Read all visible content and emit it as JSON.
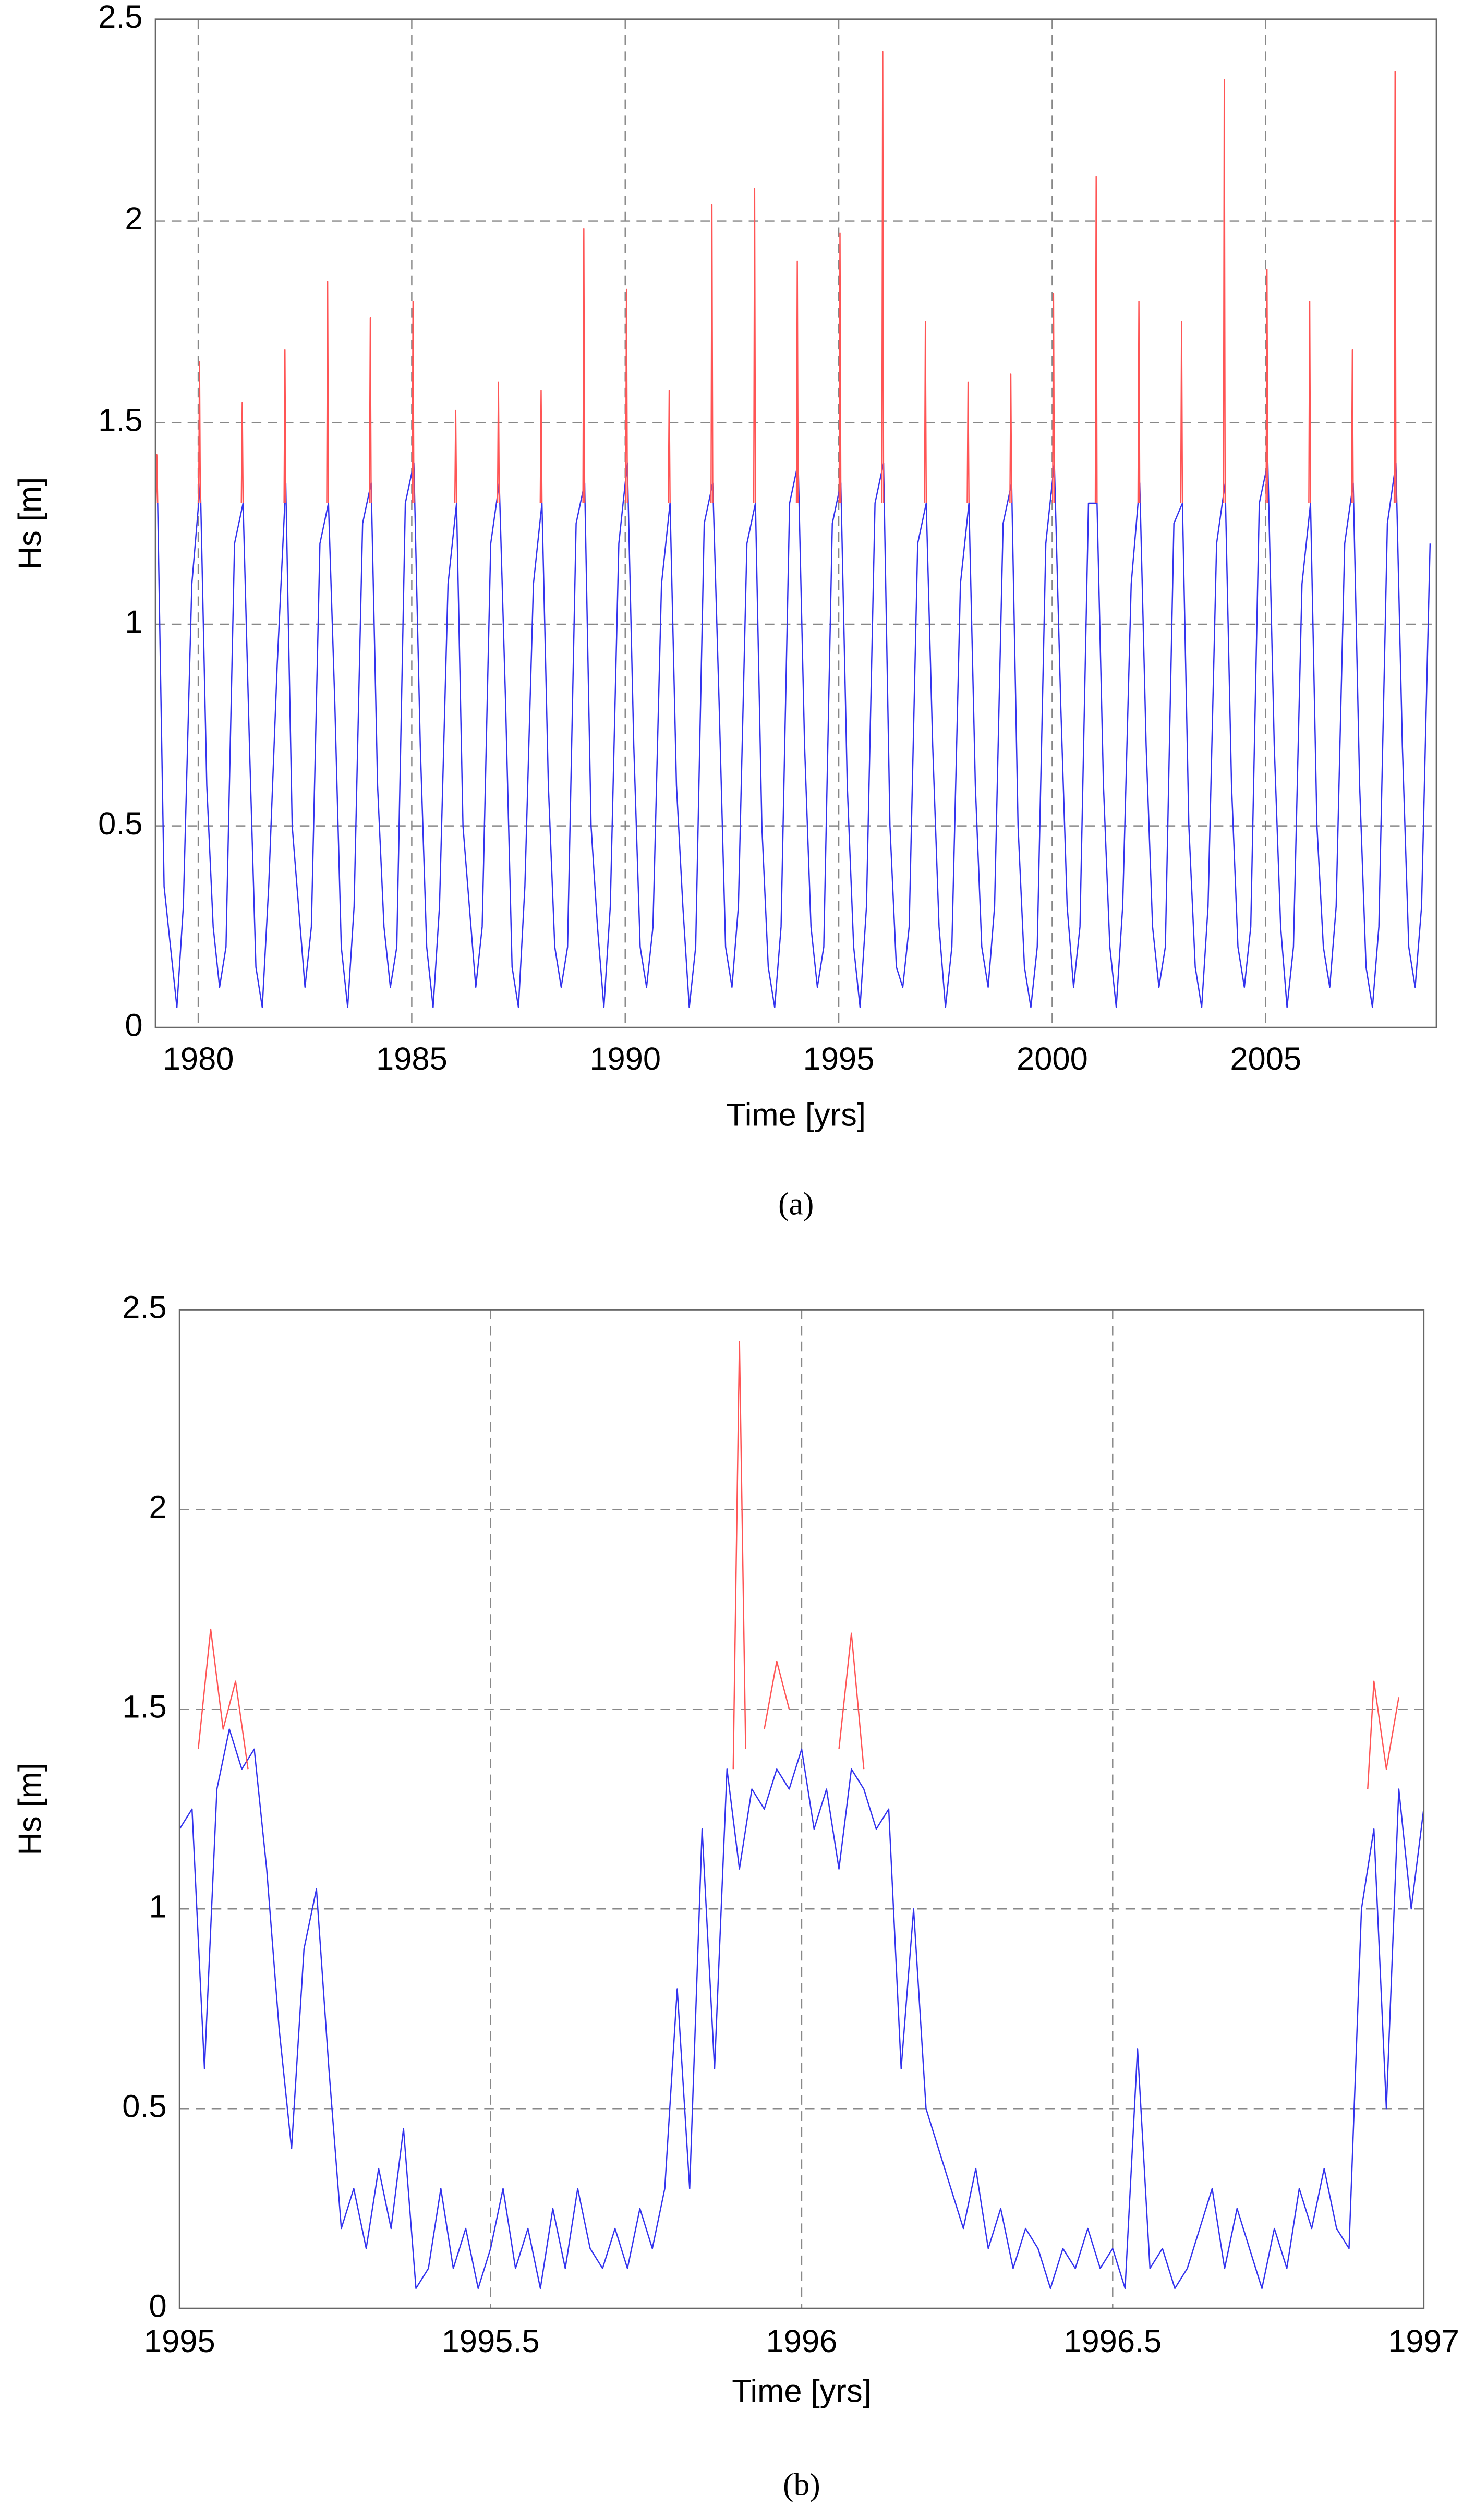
{
  "chart_data": [
    {
      "type": "line",
      "caption": "(a)",
      "xlabel": "Time [yrs]",
      "ylabel": "Hs [m]",
      "xlim": [
        1979,
        2009
      ],
      "xticks": [
        1980,
        1985,
        1990,
        1995,
        2000,
        2005
      ],
      "ylim": [
        0,
        2.5
      ],
      "yticks": [
        0,
        0.5,
        1,
        1.5,
        2,
        2.5
      ],
      "grid": true,
      "series": [
        {
          "color": "#3333ee",
          "x": [
            1979.05,
            1979.2,
            1979.35,
            1979.5,
            1979.65,
            1979.85,
            1980.05,
            1980.2,
            1980.35,
            1980.5,
            1980.65,
            1980.85,
            1981.05,
            1981.2,
            1981.35,
            1981.5,
            1981.65,
            1981.85,
            1982.05,
            1982.2,
            1982.35,
            1982.5,
            1982.65,
            1982.85,
            1983.05,
            1983.2,
            1983.35,
            1983.5,
            1983.65,
            1983.85,
            1984.05,
            1984.2,
            1984.35,
            1984.5,
            1984.65,
            1984.85,
            1985.05,
            1985.2,
            1985.35,
            1985.5,
            1985.65,
            1985.85,
            1986.05,
            1986.2,
            1986.35,
            1986.5,
            1986.65,
            1986.85,
            1987.05,
            1987.2,
            1987.35,
            1987.5,
            1987.65,
            1987.85,
            1988.05,
            1988.2,
            1988.35,
            1988.5,
            1988.65,
            1988.85,
            1989.05,
            1989.2,
            1989.35,
            1989.5,
            1989.65,
            1989.85,
            1990.05,
            1990.2,
            1990.35,
            1990.5,
            1990.65,
            1990.85,
            1991.05,
            1991.2,
            1991.35,
            1991.5,
            1991.65,
            1991.85,
            1992.05,
            1992.2,
            1992.35,
            1992.5,
            1992.65,
            1992.85,
            1993.05,
            1993.2,
            1993.35,
            1993.5,
            1993.65,
            1993.85,
            1994.05,
            1994.2,
            1994.35,
            1994.5,
            1994.65,
            1994.85,
            1995.05,
            1995.2,
            1995.35,
            1995.5,
            1995.65,
            1995.85,
            1996.05,
            1996.2,
            1996.35,
            1996.5,
            1996.65,
            1996.85,
            1997.05,
            1997.2,
            1997.35,
            1997.5,
            1997.65,
            1997.85,
            1998.05,
            1998.2,
            1998.35,
            1998.5,
            1998.65,
            1998.85,
            1999.05,
            1999.2,
            1999.35,
            1999.5,
            1999.65,
            1999.85,
            2000.05,
            2000.2,
            2000.35,
            2000.5,
            2000.65,
            2000.85,
            2001.05,
            2001.2,
            2001.35,
            2001.5,
            2001.65,
            2001.85,
            2002.05,
            2002.2,
            2002.35,
            2002.5,
            2002.65,
            2002.85,
            2003.05,
            2003.2,
            2003.35,
            2003.5,
            2003.65,
            2003.85,
            2004.05,
            2004.2,
            2004.35,
            2004.5,
            2004.65,
            2004.85,
            2005.05,
            2005.2,
            2005.35,
            2005.5,
            2005.65,
            2005.85,
            2006.05,
            2006.2,
            2006.35,
            2006.5,
            2006.65,
            2006.85,
            2007.05,
            2007.2,
            2007.35,
            2007.5,
            2007.65,
            2007.85,
            2008.05,
            2008.2,
            2008.35,
            2008.5,
            2008.65,
            2008.85
          ],
          "values": [
            1.3,
            0.35,
            0.2,
            0.05,
            0.3,
            1.1,
            1.35,
            0.6,
            0.25,
            0.1,
            0.2,
            1.2,
            1.3,
            0.7,
            0.15,
            0.05,
            0.35,
            0.9,
            1.35,
            0.5,
            0.3,
            0.1,
            0.25,
            1.2,
            1.3,
            0.8,
            0.2,
            0.05,
            0.3,
            1.25,
            1.35,
            0.6,
            0.25,
            0.1,
            0.2,
            1.3,
            1.4,
            0.7,
            0.2,
            0.05,
            0.3,
            1.1,
            1.3,
            0.5,
            0.3,
            0.1,
            0.25,
            1.2,
            1.35,
            0.8,
            0.15,
            0.05,
            0.35,
            1.1,
            1.3,
            0.6,
            0.2,
            0.1,
            0.2,
            1.25,
            1.35,
            0.5,
            0.25,
            0.05,
            0.3,
            1.2,
            1.4,
            0.7,
            0.2,
            0.1,
            0.25,
            1.1,
            1.3,
            0.6,
            0.3,
            0.05,
            0.2,
            1.25,
            1.35,
            0.8,
            0.2,
            0.1,
            0.3,
            1.2,
            1.3,
            0.5,
            0.15,
            0.05,
            0.25,
            1.3,
            1.4,
            0.7,
            0.25,
            0.1,
            0.2,
            1.25,
            1.35,
            0.6,
            0.2,
            0.05,
            0.3,
            1.3,
            1.4,
            0.5,
            0.15,
            0.1,
            0.25,
            1.2,
            1.3,
            0.7,
            0.25,
            0.05,
            0.2,
            1.1,
            1.3,
            0.6,
            0.2,
            0.1,
            0.3,
            1.25,
            1.35,
            0.5,
            0.15,
            0.05,
            0.2,
            1.2,
            1.4,
            0.8,
            0.3,
            0.1,
            0.25,
            1.3,
            1.3,
            0.6,
            0.2,
            0.05,
            0.3,
            1.1,
            1.35,
            0.7,
            0.25,
            0.1,
            0.2,
            1.25,
            1.3,
            0.5,
            0.15,
            0.05,
            0.3,
            1.2,
            1.35,
            0.6,
            0.2,
            0.1,
            0.25,
            1.3,
            1.4,
            0.7,
            0.25,
            0.05,
            0.2,
            1.1,
            1.3,
            0.5,
            0.2,
            0.1,
            0.3,
            1.2,
            1.35,
            0.6,
            0.15,
            0.05,
            0.25,
            1.25,
            1.4,
            0.7,
            0.2,
            0.1,
            0.3,
            1.2
          ]
        },
        {
          "color": "#ff5555",
          "x": [
            1979.01,
            1979.03,
            1979.05,
            1979.5,
            1980.01,
            1980.03,
            1980.05,
            1980.5,
            1981.01,
            1981.03,
            1981.05,
            1981.5,
            1982.01,
            1982.03,
            1982.05,
            1982.5,
            1983.01,
            1983.03,
            1983.05,
            1983.5,
            1984.01,
            1984.03,
            1984.05,
            1984.5,
            1985.01,
            1985.03,
            1985.05,
            1985.5,
            1986.01,
            1986.03,
            1986.05,
            1986.5,
            1987.01,
            1987.03,
            1987.05,
            1987.5,
            1988.01,
            1988.03,
            1988.05,
            1988.5,
            1989.01,
            1989.03,
            1989.05,
            1989.5,
            1990.01,
            1990.03,
            1990.05,
            1990.5,
            1991.01,
            1991.03,
            1991.05,
            1991.5,
            1992.01,
            1992.03,
            1992.05,
            1992.5,
            1993.01,
            1993.03,
            1993.05,
            1993.5,
            1994.01,
            1994.03,
            1994.05,
            1994.5,
            1995.01,
            1995.03,
            1995.05,
            1995.5,
            1996.01,
            1996.03,
            1996.05,
            1996.5,
            1997.01,
            1997.03,
            1997.05,
            1997.5,
            1998.01,
            1998.03,
            1998.05,
            1998.5,
            1999.01,
            1999.03,
            1999.05,
            1999.5,
            2000.01,
            2000.03,
            2000.05,
            2000.5,
            2001.01,
            2001.03,
            2001.05,
            2001.5,
            2002.01,
            2002.03,
            2002.05,
            2002.5,
            2003.01,
            2003.03,
            2003.05,
            2003.5,
            2004.01,
            2004.03,
            2004.05,
            2004.5,
            2005.01,
            2005.03,
            2005.05,
            2005.5,
            2006.01,
            2006.03,
            2006.05,
            2006.5,
            2007.01,
            2007.03,
            2007.05,
            2007.5,
            2008.01,
            2008.03,
            2008.05
          ],
          "values": [
            1.3,
            1.42,
            1.3,
            null,
            1.3,
            1.65,
            1.3,
            null,
            1.3,
            1.55,
            1.3,
            null,
            1.3,
            1.68,
            1.3,
            null,
            1.3,
            1.85,
            1.3,
            null,
            1.3,
            1.76,
            1.3,
            null,
            1.3,
            1.8,
            1.3,
            null,
            1.3,
            1.53,
            1.3,
            null,
            1.3,
            1.6,
            1.3,
            null,
            1.3,
            1.58,
            1.3,
            null,
            1.3,
            1.98,
            1.3,
            null,
            1.3,
            1.83,
            1.3,
            null,
            1.3,
            1.58,
            1.3,
            null,
            1.3,
            2.04,
            1.3,
            null,
            1.3,
            2.08,
            1.3,
            null,
            1.3,
            1.9,
            1.3,
            null,
            1.3,
            1.97,
            1.3,
            null,
            1.3,
            2.42,
            1.3,
            null,
            1.3,
            1.75,
            1.3,
            null,
            1.3,
            1.6,
            1.3,
            null,
            1.3,
            1.62,
            1.3,
            null,
            1.3,
            1.82,
            1.3,
            null,
            1.3,
            2.11,
            1.3,
            null,
            1.3,
            1.8,
            1.3,
            null,
            1.3,
            1.75,
            1.3,
            null,
            1.3,
            2.35,
            1.3,
            null,
            1.3,
            1.88,
            1.3,
            null,
            1.3,
            1.8,
            1.3,
            null,
            1.3,
            1.68,
            1.3,
            null,
            1.3,
            2.37,
            1.3
          ]
        }
      ]
    },
    {
      "type": "line",
      "caption": "(b)",
      "xlabel": "Time [yrs]",
      "ylabel": "Hs [m]",
      "xlim": [
        1995,
        1997
      ],
      "xticks": [
        1995,
        1995.5,
        1996,
        1996.5,
        1997
      ],
      "ylim": [
        0,
        2.5
      ],
      "yticks": [
        0,
        0.5,
        1,
        1.5,
        2,
        2.5
      ],
      "grid": true,
      "series": [
        {
          "color": "#3333ee",
          "x": [
            1995,
            1995.02,
            1995.04,
            1995.06,
            1995.08,
            1995.1,
            1995.12,
            1995.14,
            1995.16,
            1995.18,
            1995.2,
            1995.22,
            1995.24,
            1995.26,
            1995.28,
            1995.3,
            1995.32,
            1995.34,
            1995.36,
            1995.38,
            1995.4,
            1995.42,
            1995.44,
            1995.46,
            1995.48,
            1995.5,
            1995.52,
            1995.54,
            1995.56,
            1995.58,
            1995.6,
            1995.62,
            1995.64,
            1995.66,
            1995.68,
            1995.7,
            1995.72,
            1995.74,
            1995.76,
            1995.78,
            1995.8,
            1995.82,
            1995.84,
            1995.86,
            1995.88,
            1995.9,
            1995.92,
            1995.94,
            1995.96,
            1995.98,
            1996,
            1996.02,
            1996.04,
            1996.06,
            1996.08,
            1996.1,
            1996.12,
            1996.14,
            1996.16,
            1996.18,
            1996.2,
            1996.22,
            1996.24,
            1996.26,
            1996.28,
            1996.3,
            1996.32,
            1996.34,
            1996.36,
            1996.38,
            1996.4,
            1996.42,
            1996.44,
            1996.46,
            1996.48,
            1996.5,
            1996.52,
            1996.54,
            1996.56,
            1996.58,
            1996.6,
            1996.62,
            1996.64,
            1996.66,
            1996.68,
            1996.7,
            1996.72,
            1996.74,
            1996.76,
            1996.78,
            1996.8,
            1996.82,
            1996.84,
            1996.86,
            1996.88,
            1996.9,
            1996.92,
            1996.94,
            1996.96,
            1996.98,
            1997
          ],
          "values": [
            1.2,
            1.25,
            0.6,
            1.3,
            1.45,
            1.35,
            1.4,
            1.1,
            0.7,
            0.4,
            0.9,
            1.05,
            0.6,
            0.2,
            0.3,
            0.15,
            0.35,
            0.2,
            0.45,
            0.05,
            0.1,
            0.3,
            0.1,
            0.2,
            0.05,
            0.15,
            0.3,
            0.1,
            0.2,
            0.05,
            0.25,
            0.1,
            0.3,
            0.15,
            0.1,
            0.2,
            0.1,
            0.25,
            0.15,
            0.3,
            0.8,
            0.3,
            1.2,
            0.6,
            1.35,
            1.1,
            1.3,
            1.25,
            1.35,
            1.3,
            1.4,
            1.2,
            1.3,
            1.1,
            1.35,
            1.3,
            1.2,
            1.25,
            0.6,
            1.0,
            0.5,
            0.4,
            0.3,
            0.2,
            0.35,
            0.15,
            0.25,
            0.1,
            0.2,
            0.15,
            0.05,
            0.15,
            0.1,
            0.2,
            0.1,
            0.15,
            0.05,
            0.65,
            0.1,
            0.15,
            0.05,
            0.1,
            0.2,
            0.3,
            0.1,
            0.25,
            0.15,
            0.05,
            0.2,
            0.1,
            0.3,
            0.2,
            0.35,
            0.2,
            0.15,
            1.0,
            1.2,
            0.5,
            1.3,
            1.0,
            1.25
          ]
        },
        {
          "color": "#ff5555",
          "x": [
            1995.03,
            1995.05,
            1995.07,
            1995.09,
            1995.11,
            1995.5,
            1995.89,
            1995.9,
            1995.91,
            1995.925,
            1995.94,
            1995.96,
            1995.98,
            1996.02,
            1996.06,
            1996.08,
            1996.1,
            1996.5,
            1996.91,
            1996.92,
            1996.94,
            1996.96
          ],
          "values": [
            1.4,
            1.7,
            1.45,
            1.57,
            1.35,
            null,
            1.35,
            2.42,
            1.4,
            null,
            1.45,
            1.62,
            1.5,
            null,
            1.4,
            1.69,
            1.35,
            null,
            1.3,
            1.57,
            1.35,
            1.53
          ]
        }
      ]
    }
  ]
}
